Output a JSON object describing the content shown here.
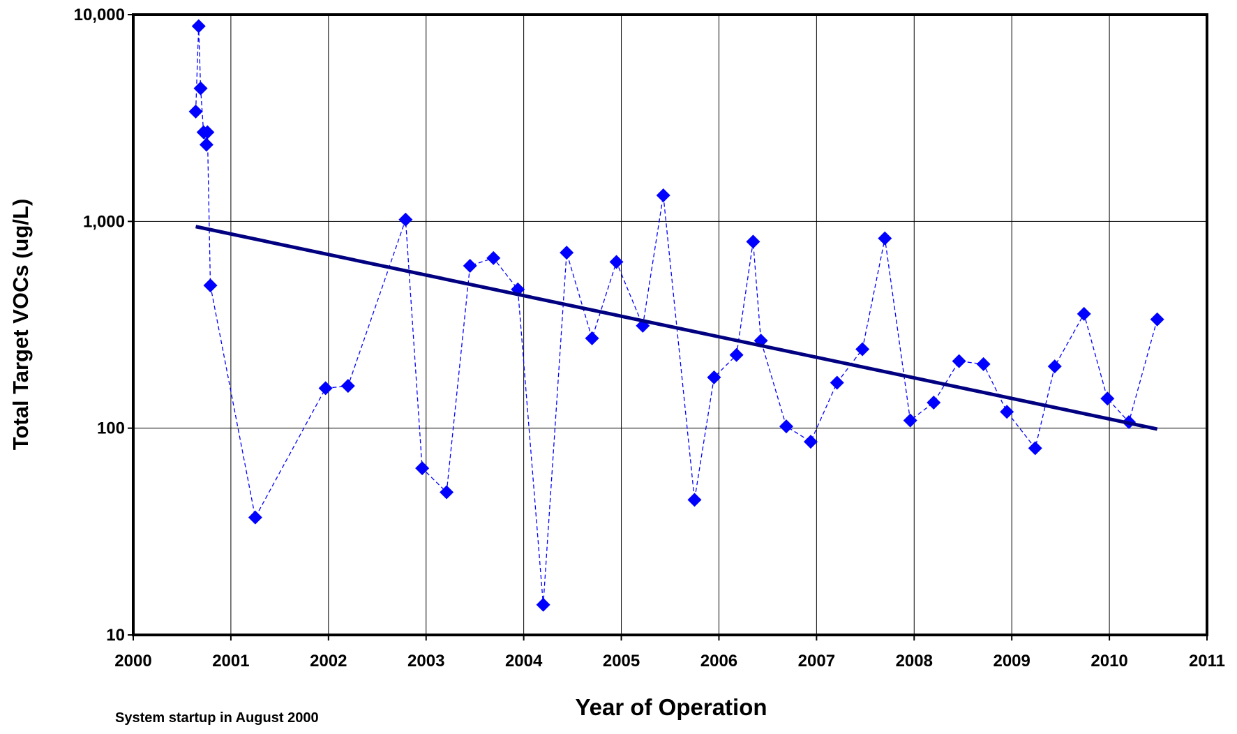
{
  "chart_data": {
    "type": "line",
    "x_label": "Year of Operation",
    "y_label": "Total Target VOCs (ug/L)",
    "annotation": "System startup in August 2000",
    "xlim": [
      2000,
      2011
    ],
    "xticks": [
      2000,
      2001,
      2002,
      2003,
      2004,
      2005,
      2006,
      2007,
      2008,
      2009,
      2010,
      2011
    ],
    "ylim": [
      10,
      10000
    ],
    "yticks": [
      {
        "value": 10,
        "label": "10"
      },
      {
        "value": 100,
        "label": "100"
      },
      {
        "value": 1000,
        "label": "1,000"
      },
      {
        "value": 10000,
        "label": "10,000"
      }
    ],
    "log_y": true,
    "grid": true,
    "series": [
      {
        "color": "#0000ff",
        "line": "dashed",
        "marker": "diamond",
        "x": [
          2000.64,
          2000.67,
          2000.69,
          2000.72,
          2000.75,
          2000.76,
          2000.79,
          2001.25,
          2001.97,
          2002.2,
          2002.79,
          2002.96,
          2003.21,
          2003.45,
          2003.69,
          2003.94,
          2004.2,
          2004.44,
          2004.7,
          2004.95,
          2005.22,
          2005.43,
          2005.75,
          2005.95,
          2006.18,
          2006.35,
          2006.43,
          2006.69,
          2006.94,
          2007.21,
          2007.47,
          2007.7,
          2007.96,
          2008.2,
          2008.46,
          2008.71,
          2008.95,
          2009.24,
          2009.44,
          2009.74,
          2009.98,
          2010.2,
          2010.49
        ],
        "values": [
          3400,
          8800,
          4400,
          2700,
          2350,
          2700,
          490,
          37,
          156,
          160,
          1020,
          64,
          49,
          610,
          665,
          469,
          14,
          706,
          272,
          637,
          313,
          1337,
          45,
          176,
          226,
          798,
          265,
          102,
          86,
          166,
          241,
          828,
          109,
          133,
          211,
          204,
          120,
          80,
          199,
          357,
          139,
          107,
          336
        ]
      },
      {
        "color": "#000080",
        "line": "solid",
        "marker": "none",
        "x": [
          2000.64,
          2010.49
        ],
        "values": [
          944,
          99
        ]
      }
    ]
  }
}
